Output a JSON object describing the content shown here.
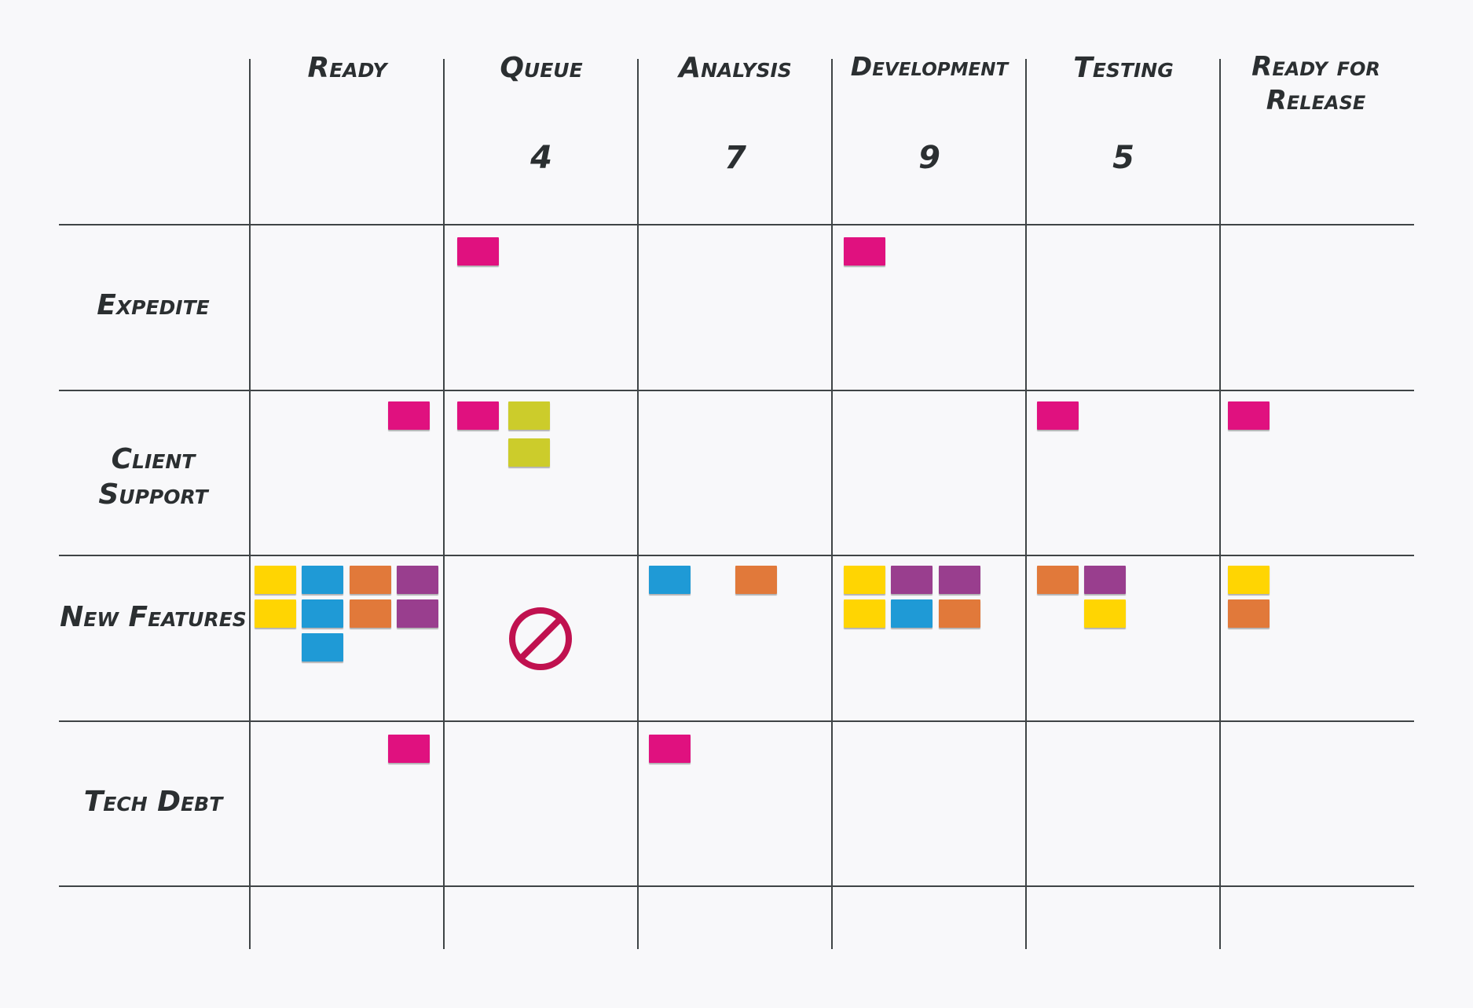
{
  "colors": {
    "pink": "#e0117f",
    "olive": "#cccc2b",
    "yellow": "#ffd502",
    "blue": "#1f9ad6",
    "orange": "#e1793a",
    "purple": "#993e8e",
    "blocked": "#c0114f",
    "line": "#3f4446",
    "text": "#2b2f31"
  },
  "columns": [
    {
      "label": "Ready",
      "wip": ""
    },
    {
      "label": "Queue",
      "wip": "4"
    },
    {
      "label": "Analysis",
      "wip": "7"
    },
    {
      "label": "Development",
      "wip": "9"
    },
    {
      "label": "Testing",
      "wip": "5"
    },
    {
      "label": "Ready for Release",
      "wip": ""
    }
  ],
  "rows": [
    {
      "label": "Expedite"
    },
    {
      "label": "Client Support"
    },
    {
      "label": "New Features"
    },
    {
      "label": "Tech Debt"
    }
  ],
  "cards": {
    "expedite": {
      "queue": [
        "pink"
      ],
      "development": [
        "pink"
      ]
    },
    "client_support": {
      "ready": [
        "pink"
      ],
      "queue": [
        "pink",
        "olive",
        "olive"
      ],
      "testing": [
        "pink"
      ],
      "ready_for_release": [
        "pink"
      ]
    },
    "new_features": {
      "ready": [
        "yellow",
        "blue",
        "orange",
        "purple",
        "yellow",
        "blue",
        "orange",
        "purple",
        "blue"
      ],
      "queue": [],
      "analysis": [
        "blue",
        "orange"
      ],
      "development": [
        "yellow",
        "purple",
        "purple",
        "yellow",
        "blue",
        "orange"
      ],
      "testing": [
        "orange",
        "purple",
        "yellow"
      ],
      "ready_for_release": [
        "yellow",
        "orange"
      ]
    },
    "tech_debt": {
      "ready": [
        "pink"
      ],
      "analysis": [
        "pink"
      ]
    }
  },
  "blocked": {
    "row": "New Features",
    "column": "Queue",
    "icon": "blocked-icon"
  }
}
